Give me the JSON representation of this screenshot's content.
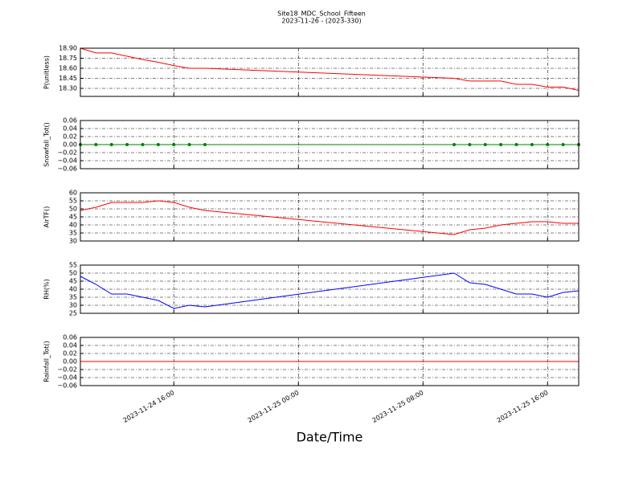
{
  "figure": {
    "title": "Site18_MDC_School_Fifteen",
    "subtitle": "2023-11-26 - (2023-330)",
    "xlabel": "Date/Time",
    "xlim": [
      "2023-11-24 10:00",
      "2023-11-25 18:00"
    ],
    "xticks": [
      "2023-11-24 16:00",
      "2023-11-25 00:00",
      "2023-11-25 08:00",
      "2023-11-25 16:00"
    ]
  },
  "chart_data": [
    {
      "type": "line",
      "ylabel": "P(unitless)",
      "x": [
        "2023-11-24 10:00",
        "2023-11-24 11:00",
        "2023-11-24 12:00",
        "2023-11-24 13:00",
        "2023-11-24 14:00",
        "2023-11-24 15:00",
        "2023-11-24 16:00",
        "2023-11-24 17:00",
        "2023-11-24 18:00",
        "2023-11-25 10:00",
        "2023-11-25 11:00",
        "2023-11-25 12:00",
        "2023-11-25 13:00",
        "2023-11-25 14:00",
        "2023-11-25 15:00",
        "2023-11-25 16:00",
        "2023-11-25 17:00",
        "2023-11-25 18:00"
      ],
      "series": [
        {
          "color": "#ff0000",
          "values": [
            18.9,
            18.83,
            18.83,
            18.78,
            18.73,
            18.69,
            18.64,
            18.6,
            18.6,
            18.45,
            18.41,
            18.41,
            18.41,
            18.36,
            18.36,
            18.32,
            18.32,
            18.27
          ]
        }
      ],
      "ylim": [
        18.18,
        18.9
      ],
      "yticks": [
        {
          "value": 18.3,
          "label": "18.30"
        },
        {
          "value": 18.45,
          "label": "18.45"
        },
        {
          "value": 18.6,
          "label": "18.60"
        },
        {
          "value": 18.75,
          "label": "18.75"
        },
        {
          "value": 18.9,
          "label": "18.90"
        }
      ],
      "grid": true
    },
    {
      "type": "line",
      "ylabel": "Snowfall_Tot()",
      "x": [
        "2023-11-24 10:00",
        "2023-11-24 11:00",
        "2023-11-24 12:00",
        "2023-11-24 13:00",
        "2023-11-24 14:00",
        "2023-11-24 15:00",
        "2023-11-24 16:00",
        "2023-11-24 17:00",
        "2023-11-24 18:00",
        "2023-11-25 10:00",
        "2023-11-25 11:00",
        "2023-11-25 12:00",
        "2023-11-25 13:00",
        "2023-11-25 14:00",
        "2023-11-25 15:00",
        "2023-11-25 16:00",
        "2023-11-25 17:00",
        "2023-11-25 18:00"
      ],
      "series": [
        {
          "color": "#008000",
          "marker": true,
          "values": [
            0,
            0,
            0,
            0,
            0,
            0,
            0,
            0,
            0,
            0,
            0,
            0,
            0,
            0,
            0,
            0,
            0,
            0
          ]
        }
      ],
      "ylim": [
        -0.06,
        0.06
      ],
      "yticks": [
        {
          "value": -0.06,
          "label": "−0.06"
        },
        {
          "value": -0.04,
          "label": "−0.04"
        },
        {
          "value": -0.02,
          "label": "−0.02"
        },
        {
          "value": 0,
          "label": "0.00"
        },
        {
          "value": 0.02,
          "label": "0.02"
        },
        {
          "value": 0.04,
          "label": "0.04"
        },
        {
          "value": 0.06,
          "label": "0.06"
        }
      ],
      "grid": true
    },
    {
      "type": "line",
      "ylabel": "AirTF()",
      "x": [
        "2023-11-24 10:00",
        "2023-11-24 11:00",
        "2023-11-24 12:00",
        "2023-11-24 13:00",
        "2023-11-24 14:00",
        "2023-11-24 15:00",
        "2023-11-24 16:00",
        "2023-11-24 17:00",
        "2023-11-24 18:00",
        "2023-11-25 10:00",
        "2023-11-25 11:00",
        "2023-11-25 12:00",
        "2023-11-25 13:00",
        "2023-11-25 14:00",
        "2023-11-25 15:00",
        "2023-11-25 16:00",
        "2023-11-25 17:00",
        "2023-11-25 18:00"
      ],
      "series": [
        {
          "color": "#ff0000",
          "values": [
            49,
            51,
            54,
            54,
            54,
            55,
            54,
            51,
            49,
            34,
            37,
            38,
            40,
            41,
            42,
            42,
            41,
            41
          ]
        }
      ],
      "ylim": [
        30,
        60
      ],
      "yticks": [
        30,
        35,
        40,
        45,
        50,
        55,
        60
      ],
      "grid": true
    },
    {
      "type": "line",
      "ylabel": "RH(%)",
      "x": [
        "2023-11-24 10:00",
        "2023-11-24 11:00",
        "2023-11-24 12:00",
        "2023-11-24 13:00",
        "2023-11-24 14:00",
        "2023-11-24 15:00",
        "2023-11-24 16:00",
        "2023-11-24 17:00",
        "2023-11-24 18:00",
        "2023-11-25 10:00",
        "2023-11-25 11:00",
        "2023-11-25 12:00",
        "2023-11-25 13:00",
        "2023-11-25 14:00",
        "2023-11-25 15:00",
        "2023-11-25 16:00",
        "2023-11-25 17:00",
        "2023-11-25 18:00"
      ],
      "series": [
        {
          "color": "#0000ff",
          "values": [
            48,
            43,
            37,
            37,
            35,
            33,
            28,
            30,
            29,
            50,
            44,
            43,
            40,
            37,
            37,
            35,
            38,
            39
          ]
        }
      ],
      "ylim": [
        25,
        55
      ],
      "yticks": [
        25,
        30,
        35,
        40,
        45,
        50,
        55
      ],
      "grid": true
    },
    {
      "type": "line",
      "ylabel": "Rainfall_Tot()",
      "x": [
        "2023-11-24 10:00",
        "2023-11-24 11:00",
        "2023-11-24 12:00",
        "2023-11-24 13:00",
        "2023-11-24 14:00",
        "2023-11-24 15:00",
        "2023-11-24 16:00",
        "2023-11-24 17:00",
        "2023-11-24 18:00",
        "2023-11-25 10:00",
        "2023-11-25 11:00",
        "2023-11-25 12:00",
        "2023-11-25 13:00",
        "2023-11-25 14:00",
        "2023-11-25 15:00",
        "2023-11-25 16:00",
        "2023-11-25 17:00",
        "2023-11-25 18:00"
      ],
      "series": [
        {
          "color": "#ff0000",
          "values": [
            0,
            0,
            0,
            0,
            0,
            0,
            0,
            0,
            0,
            0,
            0,
            0,
            0,
            0,
            0,
            0,
            0,
            0
          ]
        }
      ],
      "ylim": [
        -0.06,
        0.06
      ],
      "yticks": [
        {
          "value": -0.06,
          "label": "−0.06"
        },
        {
          "value": -0.04,
          "label": "−0.04"
        },
        {
          "value": -0.02,
          "label": "−0.02"
        },
        {
          "value": 0,
          "label": "0.00"
        },
        {
          "value": 0.02,
          "label": "0.02"
        },
        {
          "value": 0.04,
          "label": "0.04"
        },
        {
          "value": 0.06,
          "label": "0.06"
        }
      ],
      "grid": true
    }
  ]
}
